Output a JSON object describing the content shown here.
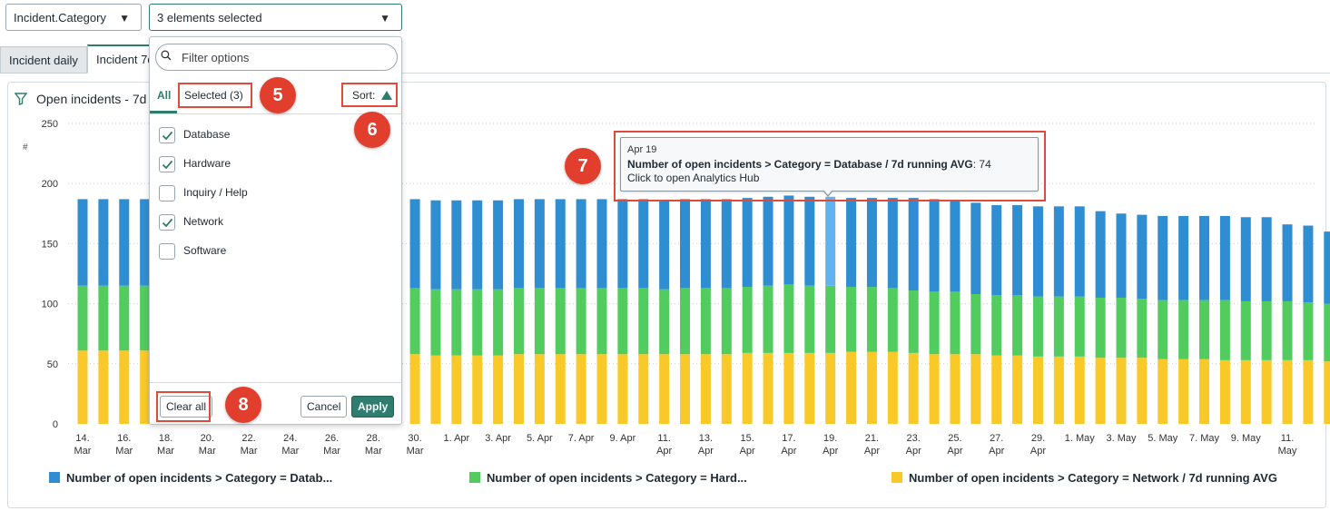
{
  "controls": {
    "field_select": "Incident.Category",
    "value_select": "3 elements selected"
  },
  "tabs": [
    "Incident daily",
    "Incident 7d"
  ],
  "chart": {
    "title": "Open incidents - 7d"
  },
  "dropdown": {
    "search_placeholder": "Filter options",
    "tab_all": "All",
    "tab_selected": "Selected (3)",
    "sort_label": "Sort:",
    "options": [
      {
        "label": "Database",
        "checked": true
      },
      {
        "label": "Hardware",
        "checked": true
      },
      {
        "label": "Inquiry / Help",
        "checked": false
      },
      {
        "label": "Network",
        "checked": true
      },
      {
        "label": "Software",
        "checked": false
      }
    ],
    "clear_all": "Clear all",
    "cancel": "Cancel",
    "apply": "Apply"
  },
  "tooltip": {
    "date": "Apr 19",
    "label": "Number of open incidents > Category = Database / 7d running AVG",
    "value": ": 74",
    "hint": "Click to open Analytics Hub"
  },
  "annotations": [
    "5",
    "6",
    "7",
    "8"
  ],
  "colors": {
    "accent": "#2e7d6e",
    "database": "#2f8ed1",
    "database_highlight": "#5fb4ef",
    "hardware": "#52cc5e",
    "network": "#f8c928",
    "annotation": "#e23e2e"
  },
  "chart_data": {
    "type": "bar",
    "stacked": true,
    "ylim": [
      0,
      250
    ],
    "yticks": [
      0,
      50,
      100,
      150,
      200,
      250
    ],
    "ylabel": "#",
    "grid": true,
    "legend_position": "bottom",
    "x": [
      "14 Mar",
      "15 Mar",
      "16 Mar",
      "17 Mar",
      "18 Mar",
      "19 Mar",
      "20 Mar",
      "21 Mar",
      "22 Mar",
      "23 Mar",
      "24 Mar",
      "25 Mar",
      "26 Mar",
      "27 Mar",
      "28 Mar",
      "29 Mar",
      "30 Mar",
      "31 Mar",
      "1 Apr",
      "2 Apr",
      "3 Apr",
      "4 Apr",
      "5 Apr",
      "6 Apr",
      "7 Apr",
      "8 Apr",
      "9 Apr",
      "10 Apr",
      "11 Apr",
      "12 Apr",
      "13 Apr",
      "14 Apr",
      "15 Apr",
      "16 Apr",
      "17 Apr",
      "18 Apr",
      "19 Apr",
      "20 Apr",
      "21 Apr",
      "22 Apr",
      "23 Apr",
      "24 Apr",
      "25 Apr",
      "26 Apr",
      "27 Apr",
      "28 Apr",
      "29 Apr",
      "30 Apr",
      "1 May",
      "2 May",
      "3 May",
      "4 May",
      "5 May",
      "6 May",
      "7 May",
      "8 May",
      "9 May",
      "10 May",
      "11 May",
      "12 May",
      "13 May"
    ],
    "tick_labels": [
      {
        "index": 0,
        "line1": "14.",
        "line2": "Mar"
      },
      {
        "index": 2,
        "line1": "16.",
        "line2": "Mar"
      },
      {
        "index": 4,
        "line1": "18.",
        "line2": "Mar"
      },
      {
        "index": 6,
        "line1": "20.",
        "line2": "Mar"
      },
      {
        "index": 8,
        "line1": "22.",
        "line2": "Mar"
      },
      {
        "index": 10,
        "line1": "24.",
        "line2": "Mar"
      },
      {
        "index": 12,
        "line1": "26.",
        "line2": "Mar"
      },
      {
        "index": 14,
        "line1": "28.",
        "line2": "Mar"
      },
      {
        "index": 16,
        "line1": "30.",
        "line2": "Mar"
      },
      {
        "index": 18,
        "line1": "1. Apr",
        "line2": ""
      },
      {
        "index": 20,
        "line1": "3. Apr",
        "line2": ""
      },
      {
        "index": 22,
        "line1": "5. Apr",
        "line2": ""
      },
      {
        "index": 24,
        "line1": "7. Apr",
        "line2": ""
      },
      {
        "index": 26,
        "line1": "9. Apr",
        "line2": ""
      },
      {
        "index": 28,
        "line1": "11.",
        "line2": "Apr"
      },
      {
        "index": 30,
        "line1": "13.",
        "line2": "Apr"
      },
      {
        "index": 32,
        "line1": "15.",
        "line2": "Apr"
      },
      {
        "index": 34,
        "line1": "17.",
        "line2": "Apr"
      },
      {
        "index": 36,
        "line1": "19.",
        "line2": "Apr"
      },
      {
        "index": 38,
        "line1": "21.",
        "line2": "Apr"
      },
      {
        "index": 40,
        "line1": "23.",
        "line2": "Apr"
      },
      {
        "index": 42,
        "line1": "25.",
        "line2": "Apr"
      },
      {
        "index": 44,
        "line1": "27.",
        "line2": "Apr"
      },
      {
        "index": 46,
        "line1": "29.",
        "line2": "Apr"
      },
      {
        "index": 48,
        "line1": "1. May",
        "line2": ""
      },
      {
        "index": 50,
        "line1": "3. May",
        "line2": ""
      },
      {
        "index": 52,
        "line1": "5. May",
        "line2": ""
      },
      {
        "index": 54,
        "line1": "7. May",
        "line2": ""
      },
      {
        "index": 56,
        "line1": "9. May",
        "line2": ""
      },
      {
        "index": 58,
        "line1": "11.",
        "line2": "May"
      }
    ],
    "highlight_index": 36,
    "series": [
      {
        "name": "Number of open incidents > Category = Network / 7d running AVG",
        "legend_label": "Number of open incidents > Category = Network / 7d running AVG",
        "color": "#f8c928",
        "values": [
          61,
          61,
          61,
          61,
          61,
          61,
          61,
          61,
          61,
          61,
          61,
          61,
          61,
          61,
          61,
          61,
          58,
          57,
          57,
          57,
          57,
          58,
          58,
          58,
          58,
          58,
          58,
          58,
          58,
          58,
          58,
          58,
          59,
          59,
          59,
          59,
          59,
          60,
          60,
          60,
          59,
          58,
          58,
          58,
          57,
          57,
          56,
          56,
          56,
          55,
          55,
          55,
          54,
          54,
          54,
          53,
          53,
          53,
          53,
          53,
          52
        ]
      },
      {
        "name": "Number of open incidents > Category = Hardware / 7d running AVG",
        "legend_label": "Number of open incidents > Category = Hard...",
        "color": "#52cc5e",
        "values": [
          54,
          54,
          54,
          54,
          54,
          54,
          54,
          54,
          54,
          54,
          54,
          54,
          54,
          54,
          54,
          54,
          55,
          55,
          55,
          55,
          55,
          55,
          55,
          55,
          55,
          55,
          55,
          55,
          54,
          55,
          55,
          55,
          55,
          56,
          57,
          56,
          56,
          54,
          54,
          53,
          52,
          52,
          52,
          50,
          50,
          50,
          50,
          50,
          50,
          50,
          50,
          49,
          49,
          49,
          49,
          50,
          49,
          49,
          49,
          48,
          48
        ]
      },
      {
        "name": "Number of open incidents > Category = Database / 7d running AVG",
        "legend_label": "Number of open incidents > Category = Datab...",
        "color": "#2f8ed1",
        "values": [
          72,
          72,
          72,
          72,
          72,
          72,
          72,
          72,
          72,
          72,
          72,
          72,
          72,
          72,
          72,
          72,
          74,
          74,
          74,
          74,
          74,
          74,
          74,
          74,
          74,
          74,
          74,
          74,
          74,
          74,
          74,
          74,
          74,
          74,
          74,
          74,
          74,
          74,
          74,
          75,
          77,
          77,
          76,
          76,
          75,
          75,
          75,
          75,
          75,
          72,
          70,
          70,
          70,
          70,
          70,
          70,
          70,
          70,
          64,
          64,
          60
        ]
      }
    ]
  }
}
